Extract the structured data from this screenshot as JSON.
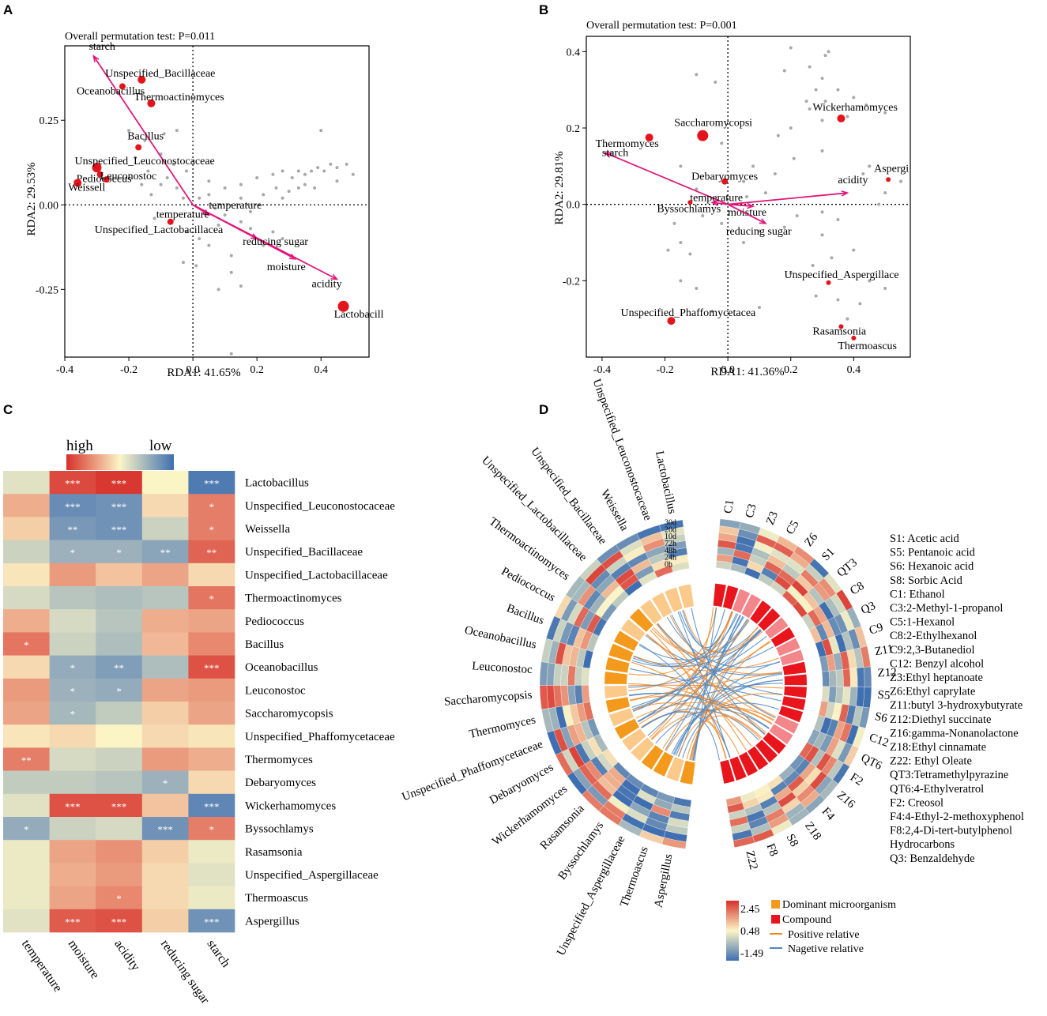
{
  "colors": {
    "red_point": "#e3141b",
    "gray_point": "#a8a8a8",
    "arrow": "#e0197a",
    "orange_link": "#f0892c",
    "blue_link": "#4a87c4",
    "dominant": "#f39a1d",
    "compound": "#e8151c",
    "heat_high": "#d7302a",
    "heat_mid": "#fbf5c6",
    "heat_low": "#3f6fb0"
  },
  "chart_data": [
    {
      "id": "A",
      "type": "scatter",
      "panel_label": "A",
      "title": "Overall  permutation  test:  P=0.011",
      "xlabel": "RDA1: 41.65%",
      "ylabel": "RDA2: 29.53%",
      "xlim": [
        -0.4,
        0.55
      ],
      "ylim": [
        -0.45,
        0.47
      ],
      "xticks": [
        -0.4,
        -0.2,
        0.0,
        0.2,
        0.4
      ],
      "xtick_labels": [
        "-0.4",
        "-0.2",
        "0.0",
        "0.2",
        "0.4"
      ],
      "yticks": [
        -0.25,
        0.0,
        0.25
      ],
      "ytick_labels": [
        "-0.25",
        "0.00",
        "0.25"
      ],
      "arrows": [
        {
          "label": "starch",
          "x": -0.31,
          "y": 0.44
        },
        {
          "label": "acidity",
          "x": 0.45,
          "y": -0.22
        },
        {
          "label": "moisture",
          "x": 0.32,
          "y": -0.16
        },
        {
          "label": "reducing sugar",
          "x": 0.2,
          "y": -0.1
        },
        {
          "label": "temperature",
          "x": 0.05,
          "y": -0.03
        }
      ],
      "species": [
        {
          "label": "Unspecified_Bacillaceae",
          "x": -0.16,
          "y": 0.37,
          "r": 5
        },
        {
          "label": "Oceanobacillus",
          "x": -0.22,
          "y": 0.35,
          "r": 4
        },
        {
          "label": "Thermoactinomyces",
          "x": -0.13,
          "y": 0.3,
          "r": 5
        },
        {
          "label": "Bacillus",
          "x": -0.17,
          "y": 0.17,
          "r": 4
        },
        {
          "label": "Unspecified_Leuconostocaceae",
          "x": -0.3,
          "y": 0.11,
          "r": 6
        },
        {
          "label": "Pediococcus",
          "x": -0.29,
          "y": 0.09,
          "r": 4
        },
        {
          "label": "Weissell",
          "x": -0.36,
          "y": 0.065,
          "r": 5
        },
        {
          "label": "Leuconostoc",
          "x": -0.27,
          "y": 0.075,
          "r": 4
        },
        {
          "label": "temperature",
          "x": -0.07,
          "y": -0.05,
          "r": 4
        },
        {
          "label": "Unspecified_Lactobacillacea",
          "x": -0.06,
          "y": -0.055,
          "r": 0
        },
        {
          "label": "Lactobacill",
          "x": 0.47,
          "y": -0.3,
          "r": 7
        }
      ],
      "gray_points": [
        [
          -0.05,
          0.22
        ],
        [
          -0.09,
          0.21
        ],
        [
          -0.15,
          0.19
        ],
        [
          -0.2,
          0.22
        ],
        [
          -0.18,
          0.14
        ],
        [
          -0.1,
          0.15
        ],
        [
          -0.06,
          0.12
        ],
        [
          -0.02,
          0.1
        ],
        [
          -0.14,
          0.1
        ],
        [
          -0.08,
          0.08
        ],
        [
          -0.05,
          0.05
        ],
        [
          -0.1,
          0.06
        ],
        [
          -0.13,
          0.03
        ],
        [
          -0.16,
          0.06
        ],
        [
          -0.03,
          0.02
        ],
        [
          0.02,
          0.02
        ],
        [
          0.05,
          0.03
        ],
        [
          0.1,
          0.05
        ],
        [
          0.15,
          0.06
        ],
        [
          0.2,
          0.08
        ],
        [
          0.25,
          0.09
        ],
        [
          0.28,
          0.1
        ],
        [
          0.31,
          0.08
        ],
        [
          0.33,
          0.1
        ],
        [
          0.35,
          0.09
        ],
        [
          0.37,
          0.1
        ],
        [
          0.39,
          0.11
        ],
        [
          0.41,
          0.1
        ],
        [
          0.43,
          0.12
        ],
        [
          0.45,
          0.11
        ],
        [
          0.48,
          0.12
        ],
        [
          0.5,
          0.09
        ],
        [
          0.4,
          0.22
        ],
        [
          0.35,
          0.06
        ],
        [
          0.26,
          0.05
        ],
        [
          0.22,
          0.03
        ],
        [
          0.3,
          0.04
        ],
        [
          0.38,
          0.05
        ],
        [
          0.45,
          0.07
        ],
        [
          0.15,
          0.02
        ],
        [
          0.07,
          -0.01
        ],
        [
          0.1,
          -0.03
        ],
        [
          0.15,
          -0.05
        ],
        [
          0.18,
          -0.07
        ],
        [
          0.25,
          -0.08
        ],
        [
          0.28,
          -0.1
        ],
        [
          0.22,
          -0.12
        ],
        [
          0.12,
          -0.15
        ],
        [
          0.05,
          -0.12
        ],
        [
          0.02,
          -0.1
        ],
        [
          -0.02,
          -0.08
        ],
        [
          0.08,
          -0.06
        ],
        [
          0.12,
          -0.2
        ],
        [
          0.15,
          -0.24
        ],
        [
          0.08,
          -0.25
        ],
        [
          0.12,
          -0.44
        ],
        [
          -0.03,
          -0.17
        ],
        [
          -0.12,
          -0.04
        ],
        [
          0.01,
          -0.18
        ],
        [
          0.18,
          -0.02
        ],
        [
          0.28,
          0.02
        ],
        [
          0.33,
          0.05
        ],
        [
          0.05,
          0.07
        ]
      ]
    },
    {
      "id": "B",
      "type": "scatter",
      "panel_label": "B",
      "title": "Overall  permutation  test:  P=0.001",
      "xlabel": "RDA1: 41.36%",
      "ylabel": "RDA2: 29.81%",
      "xlim": [
        -0.45,
        0.58
      ],
      "ylim": [
        -0.4,
        0.44
      ],
      "xticks": [
        -0.4,
        -0.2,
        0.0,
        0.2,
        0.4
      ],
      "xtick_labels": [
        "-0.4",
        "-0.2",
        "0.0",
        "0.2",
        "0.4"
      ],
      "yticks": [
        -0.2,
        0.0,
        0.2,
        0.4
      ],
      "ytick_labels": [
        "-0.2",
        "0.0",
        "0.2",
        "0.4"
      ],
      "arrows": [
        {
          "label": "starch",
          "x": -0.39,
          "y": 0.135
        },
        {
          "label": "acidity",
          "x": 0.38,
          "y": 0.03
        },
        {
          "label": "moisture",
          "x": 0.08,
          "y": -0.005
        },
        {
          "label": "reducing sugar",
          "x": 0.12,
          "y": -0.05
        },
        {
          "label": "temperature",
          "x": -0.05,
          "y": 0.005
        }
      ],
      "species": [
        {
          "label": "Wickerhamomyces",
          "x": 0.36,
          "y": 0.225,
          "r": 5
        },
        {
          "label": "Saccharomycopsi",
          "x": -0.08,
          "y": 0.18,
          "r": 7
        },
        {
          "label": "Thermomyces",
          "x": -0.25,
          "y": 0.175,
          "r": 5
        },
        {
          "label": "Aspergi",
          "x": 0.51,
          "y": 0.065,
          "r": 3
        },
        {
          "label": "Debaryomyces",
          "x": -0.01,
          "y": 0.06,
          "r": 4
        },
        {
          "label": "Byssochlamys",
          "x": -0.12,
          "y": 0.005,
          "r": 3
        },
        {
          "label": "Unspecified_Aspergillace",
          "x": 0.32,
          "y": -0.205,
          "r": 3
        },
        {
          "label": "Unspecified_Phaffomycetacea",
          "x": -0.18,
          "y": -0.305,
          "r": 5
        },
        {
          "label": "Rasamsonia",
          "x": 0.36,
          "y": -0.32,
          "r": 3
        },
        {
          "label": "Thermoascus",
          "x": 0.4,
          "y": -0.35,
          "r": 3
        }
      ],
      "gray_points": [
        [
          0.2,
          0.41
        ],
        [
          0.31,
          0.39
        ],
        [
          0.32,
          0.4
        ],
        [
          0.26,
          0.36
        ],
        [
          0.3,
          0.33
        ],
        [
          -0.1,
          0.34
        ],
        [
          -0.04,
          0.32
        ],
        [
          0.18,
          0.35
        ],
        [
          0.28,
          0.3
        ],
        [
          0.35,
          0.3
        ],
        [
          0.25,
          0.27
        ],
        [
          0.31,
          0.27
        ],
        [
          0.26,
          0.25
        ],
        [
          0.4,
          0.28
        ],
        [
          0.38,
          0.23
        ],
        [
          0.44,
          0.26
        ],
        [
          0.5,
          0.24
        ],
        [
          0.3,
          0.22
        ],
        [
          0.2,
          0.2
        ],
        [
          0.16,
          0.18
        ],
        [
          0.21,
          0.12
        ],
        [
          0.08,
          0.1
        ],
        [
          0.05,
          0.06
        ],
        [
          0.3,
          0.14
        ],
        [
          0.43,
          0.08
        ],
        [
          0.45,
          0.1
        ],
        [
          0.55,
          0.06
        ],
        [
          0.5,
          0.03
        ],
        [
          0.48,
          0.0
        ],
        [
          0.3,
          -0.02
        ],
        [
          0.22,
          -0.03
        ],
        [
          0.18,
          -0.06
        ],
        [
          0.1,
          -0.07
        ],
        [
          0.05,
          -0.1
        ],
        [
          0.3,
          -0.08
        ],
        [
          0.4,
          -0.12
        ],
        [
          0.33,
          -0.14
        ],
        [
          0.27,
          -0.16
        ],
        [
          0.2,
          -0.18
        ],
        [
          0.45,
          -0.2
        ],
        [
          0.5,
          -0.22
        ],
        [
          0.35,
          -0.25
        ],
        [
          0.42,
          -0.26
        ],
        [
          0.28,
          -0.24
        ],
        [
          0.38,
          -0.3
        ],
        [
          -0.37,
          0.13
        ],
        [
          -0.15,
          0.1
        ],
        [
          -0.1,
          0.04
        ],
        [
          -0.02,
          -0.05
        ],
        [
          -0.15,
          -0.1
        ],
        [
          -0.19,
          -0.12
        ],
        [
          -0.12,
          -0.13
        ],
        [
          -0.15,
          -0.2
        ],
        [
          -0.1,
          -0.22
        ],
        [
          -0.05,
          -0.28
        ],
        [
          0.1,
          -0.27
        ],
        [
          -0.17,
          -0.05
        ],
        [
          -0.08,
          -0.03
        ],
        [
          0.06,
          0.02
        ],
        [
          0.12,
          0.03
        ],
        [
          -0.02,
          0.16
        ],
        [
          0.15,
          0.08
        ],
        [
          0.35,
          -0.04
        ]
      ]
    },
    {
      "id": "C",
      "type": "heatmap",
      "panel_label": "C",
      "legend_high": "high",
      "legend_low": "low",
      "columns": [
        "temperature",
        "moisture",
        "acidity",
        "reducing sugar",
        "starch"
      ],
      "rows": [
        "Lactobacillus",
        "Unspecified_Leuconostocaceae",
        "Weissella",
        "Unspecified_Bacillaceae",
        "Unspecified_Lactobacillaceae",
        "Thermoactinomyces",
        "Pediococcus",
        "Bacillus",
        "Oceanobacillus",
        "Leuconostoc",
        "Saccharomycopsis",
        "Unspecified_Phaffomycetaceae",
        "Thermomyces",
        "Debaryomyces",
        "Wickerhamomyces",
        "Byssochlamys",
        "Rasamsonia",
        "Unspecified_Aspergillaceae",
        "Thermoascus",
        "Aspergillus"
      ],
      "values": [
        [
          -0.1,
          0.85,
          0.95,
          0.0,
          -0.9
        ],
        [
          0.3,
          -0.75,
          -0.7,
          0.1,
          0.55
        ],
        [
          0.15,
          -0.65,
          -0.7,
          -0.2,
          0.55
        ],
        [
          -0.2,
          -0.45,
          -0.45,
          -0.55,
          0.7
        ],
        [
          0.05,
          0.4,
          0.2,
          0.35,
          0.1
        ],
        [
          -0.15,
          -0.3,
          -0.35,
          -0.3,
          0.6
        ],
        [
          0.3,
          -0.15,
          -0.3,
          0.3,
          0.35
        ],
        [
          0.6,
          -0.2,
          -0.35,
          0.25,
          0.5
        ],
        [
          0.1,
          -0.5,
          -0.6,
          -0.35,
          0.8
        ],
        [
          0.4,
          -0.45,
          -0.5,
          0.35,
          0.4
        ],
        [
          0.35,
          -0.4,
          -0.25,
          0.15,
          0.35
        ],
        [
          0.05,
          0.1,
          0.0,
          0.1,
          0.05
        ],
        [
          0.55,
          -0.15,
          -0.2,
          0.4,
          0.3
        ],
        [
          -0.25,
          -0.25,
          -0.3,
          -0.45,
          0.1
        ],
        [
          -0.1,
          0.8,
          0.8,
          0.2,
          -0.8
        ],
        [
          -0.5,
          -0.2,
          -0.15,
          -0.7,
          0.55
        ],
        [
          -0.05,
          0.35,
          0.45,
          0.15,
          -0.05
        ],
        [
          -0.05,
          0.3,
          0.4,
          0.1,
          -0.1
        ],
        [
          -0.05,
          0.35,
          0.5,
          0.1,
          -0.05
        ],
        [
          -0.1,
          0.75,
          0.8,
          0.15,
          -0.7
        ]
      ],
      "significance": [
        [
          "",
          "***",
          "***",
          "",
          "***"
        ],
        [
          "",
          "***",
          "***",
          "",
          "*"
        ],
        [
          "",
          "**",
          "***",
          "",
          "*"
        ],
        [
          "",
          "*",
          "*",
          "**",
          "**"
        ],
        [
          "",
          "",
          "",
          "",
          ""
        ],
        [
          "",
          "",
          "",
          "",
          "*"
        ],
        [
          "",
          "",
          "",
          "",
          ""
        ],
        [
          "*",
          "",
          "",
          "",
          ""
        ],
        [
          "",
          "*",
          "**",
          "",
          "***"
        ],
        [
          "",
          "*",
          "*",
          "",
          ""
        ],
        [
          "",
          "*",
          "",
          "",
          ""
        ],
        [
          "",
          "",
          "",
          "",
          ""
        ],
        [
          "**",
          "",
          "",
          "",
          ""
        ],
        [
          "",
          "",
          "",
          "*",
          ""
        ],
        [
          "",
          "***",
          "***",
          "",
          "***"
        ],
        [
          "*",
          "",
          "",
          "***",
          "*"
        ],
        [
          "",
          "",
          "",
          "",
          ""
        ],
        [
          "",
          "",
          "",
          "",
          ""
        ],
        [
          "",
          "",
          "*",
          "",
          ""
        ],
        [
          "",
          "***",
          "***",
          "",
          "***"
        ]
      ]
    },
    {
      "id": "D",
      "type": "heatmap",
      "panel_label": "D",
      "time_labels": [
        "30d",
        "20d",
        "10d",
        "72h",
        "48h",
        "24h",
        "0h"
      ],
      "microbes": [
        "Aspergillus",
        "Thermoascus",
        "Unspecified_Aspergillaceae",
        "Byssochlamys",
        "Rasamsonia",
        "Wickerhamomyces",
        "Debaryomyces",
        "Unspecified_Phaffomycetaceae",
        "Thermomyces",
        "Saccharomycopsis",
        "Leuconostoc",
        "Oceanobacillus",
        "Bacillus",
        "Pediococcus",
        "Thermoactinomyces",
        "Unspecified_Lactobacillaceae",
        "Unspecified_Bacillaceae",
        "Weissella",
        "Unspecified_Leuconostocaceae",
        "Lactobacillus"
      ],
      "compounds": [
        "C1",
        "C3",
        "Z3",
        "C5",
        "Z6",
        "S1",
        "QT3",
        "C8",
        "Q3",
        "C9",
        "Z11",
        "Z12",
        "S5",
        "S6",
        "C12",
        "QT6",
        "F2",
        "Z16",
        "F4",
        "Z18",
        "S8",
        "F8",
        "Z22"
      ],
      "compound_legend": [
        "S1: Acetic acid",
        "S5: Pentanoic acid",
        "S6: Hexanoic acid",
        "S8: Sorbic Acid",
        "C1: Ethanol",
        "C3:2-Methyl-1-propanol",
        "C5:1-Hexanol",
        "C8:2-Ethylhexanol",
        "C9:2,3-Butanediol",
        "C12: Benzyl alcohol",
        "Z3:Ethyl heptanoate",
        "Z6:Ethyl caprylate",
        "Z11:butyl 3-hydroxybutyrate",
        "Z12:Diethyl succinate",
        "Z16:gamma-Nonanolactone",
        "Z18:Ethyl cinnamate",
        "Z22: Ethyl Oleate",
        "QT3:Tetramethylpyrazine",
        "QT6:4-Ethylveratrol",
        "F2: Creosol",
        "F4:4-Ethyl-2-methoxyphenol",
        "F8:2,4-Di-tert-butylphenol",
        "Hydrocarbons",
        "Q3: Benzaldehyde"
      ],
      "scale_values": [
        "2.45",
        "0.48",
        "-1.49"
      ],
      "legend_items": [
        "Dominant microorganism",
        "Compound",
        "Positive relative",
        "Nagetive relative"
      ]
    }
  ]
}
